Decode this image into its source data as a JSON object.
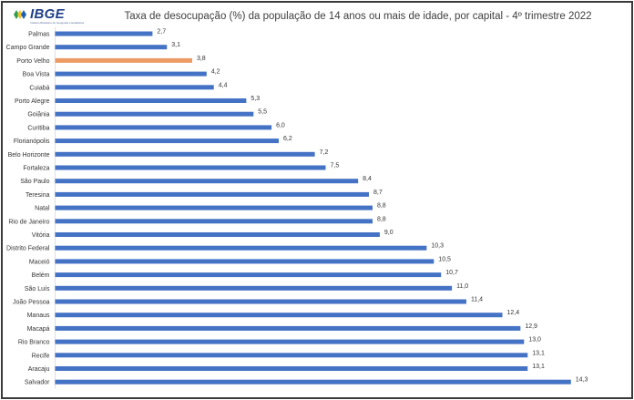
{
  "logo": {
    "word": "IBGE",
    "tagline": "Instituto Brasileiro de Geografia e Estatística"
  },
  "chart_data": {
    "type": "bar",
    "orientation": "horizontal",
    "title": "Taxa de desocupação (%) da população de 14 anos ou mais de idade, por capital - 4º trimestre 2022",
    "categories": [
      "Palmas",
      "Campo Grande",
      "Porto Velho",
      "Boa Vista",
      "Cuiabá",
      "Porto Alegre",
      "Goiânia",
      "Curitiba",
      "Florianópolis",
      "Belo Horizonte",
      "Fortaleza",
      "São Paulo",
      "Teresina",
      "Natal",
      "Rio de Janeiro",
      "Vitória",
      "Distrito Federal",
      "Maceió",
      "Belém",
      "São Luís",
      "João Pessoa",
      "Manaus",
      "Macapá",
      "Rio Branco",
      "Recife",
      "Aracaju",
      "Salvador"
    ],
    "values": [
      2.7,
      3.1,
      3.8,
      4.2,
      4.4,
      5.3,
      5.5,
      6.0,
      6.2,
      7.2,
      7.5,
      8.4,
      8.7,
      8.8,
      8.8,
      9.0,
      10.3,
      10.5,
      10.7,
      11.0,
      11.4,
      12.4,
      12.9,
      13.0,
      13.1,
      13.1,
      14.3
    ],
    "value_labels": [
      "2,7",
      "3,1",
      "3,8",
      "4,2",
      "4,4",
      "5,3",
      "5,5",
      "6,0",
      "6,2",
      "7,2",
      "7,5",
      "8,4",
      "8,7",
      "8,8",
      "8,8",
      "9,0",
      "10,3",
      "10,5",
      "10,7",
      "11,0",
      "11,4",
      "12,4",
      "12,9",
      "13,0",
      "13,1",
      "13,1",
      "14,3"
    ],
    "highlight": "Porto Velho",
    "bar_color": "#4472c4",
    "highlight_color": "#ed9a63",
    "grid": false,
    "legend": "none"
  }
}
